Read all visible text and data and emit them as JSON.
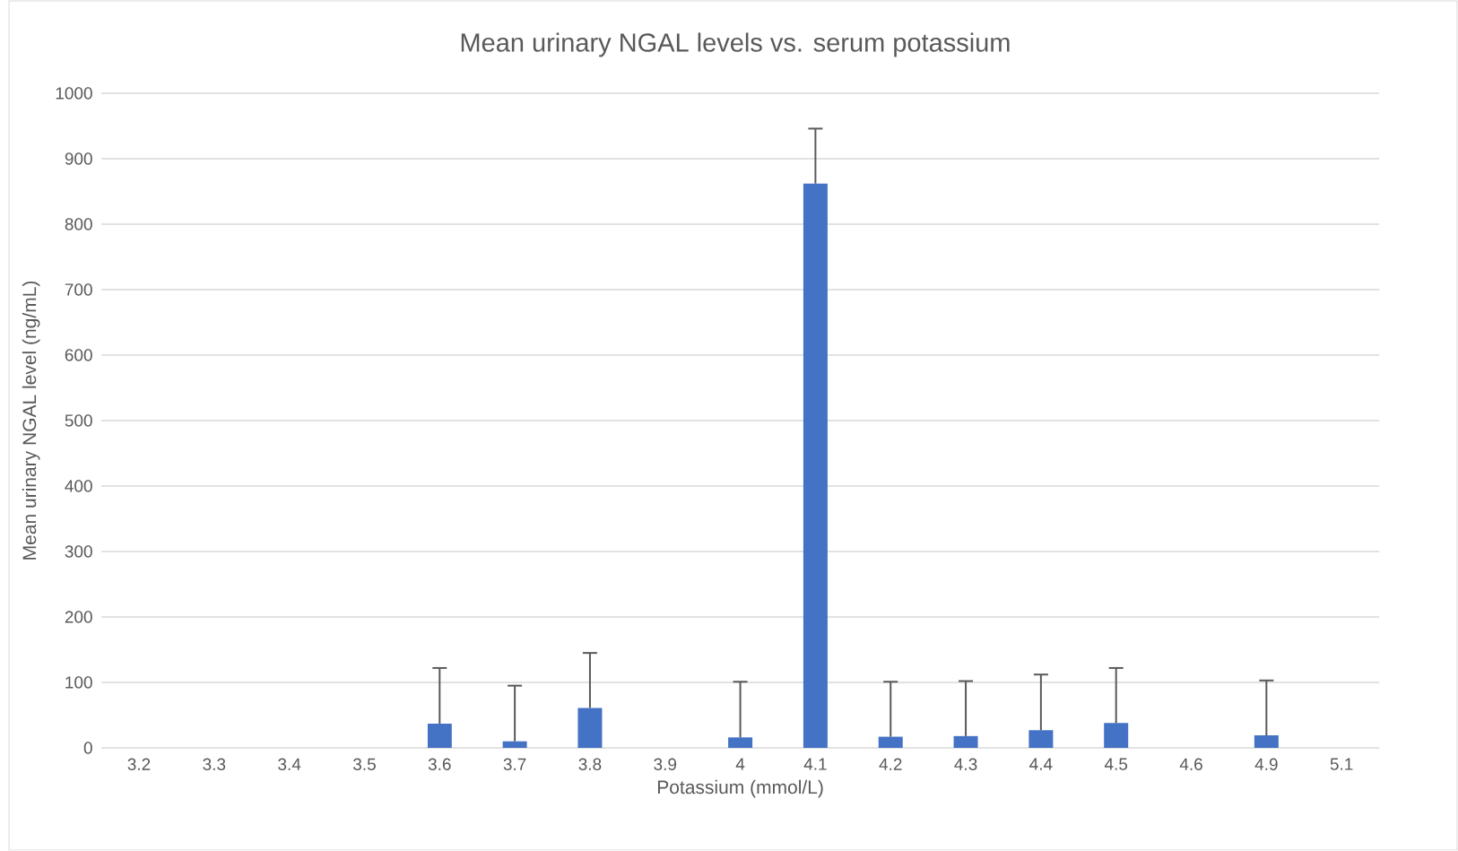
{
  "chart_data": {
    "type": "bar",
    "title": "Mean urinary NGAL levels vs. serum potassium",
    "xlabel": "Potassium (mmol/L)",
    "ylabel": "Mean urinary NGAL level (ng/mL)",
    "categories": [
      "3.2",
      "3.3",
      "3.4",
      "3.5",
      "3.6",
      "3.7",
      "3.8",
      "3.9",
      "4",
      "4.1",
      "4.2",
      "4.3",
      "4.4",
      "4.5",
      "4.6",
      "4.9",
      "5.1"
    ],
    "values": [
      null,
      null,
      null,
      null,
      37,
      10,
      61,
      null,
      16,
      862,
      17,
      18,
      27,
      38,
      null,
      19,
      null
    ],
    "errors": [
      null,
      null,
      null,
      null,
      [
        37,
        122
      ],
      [
        10,
        95
      ],
      [
        61,
        145
      ],
      null,
      [
        16,
        101
      ],
      [
        862,
        946
      ],
      [
        17,
        101
      ],
      [
        18,
        102
      ],
      [
        27,
        112
      ],
      [
        38,
        122
      ],
      null,
      [
        19,
        103
      ],
      null
    ],
    "color": "#4472c4",
    "ylim": [
      0,
      1000
    ],
    "yticks": [
      0,
      100,
      200,
      300,
      400,
      500,
      600,
      700,
      800,
      900,
      1000
    ],
    "grid": "y"
  }
}
